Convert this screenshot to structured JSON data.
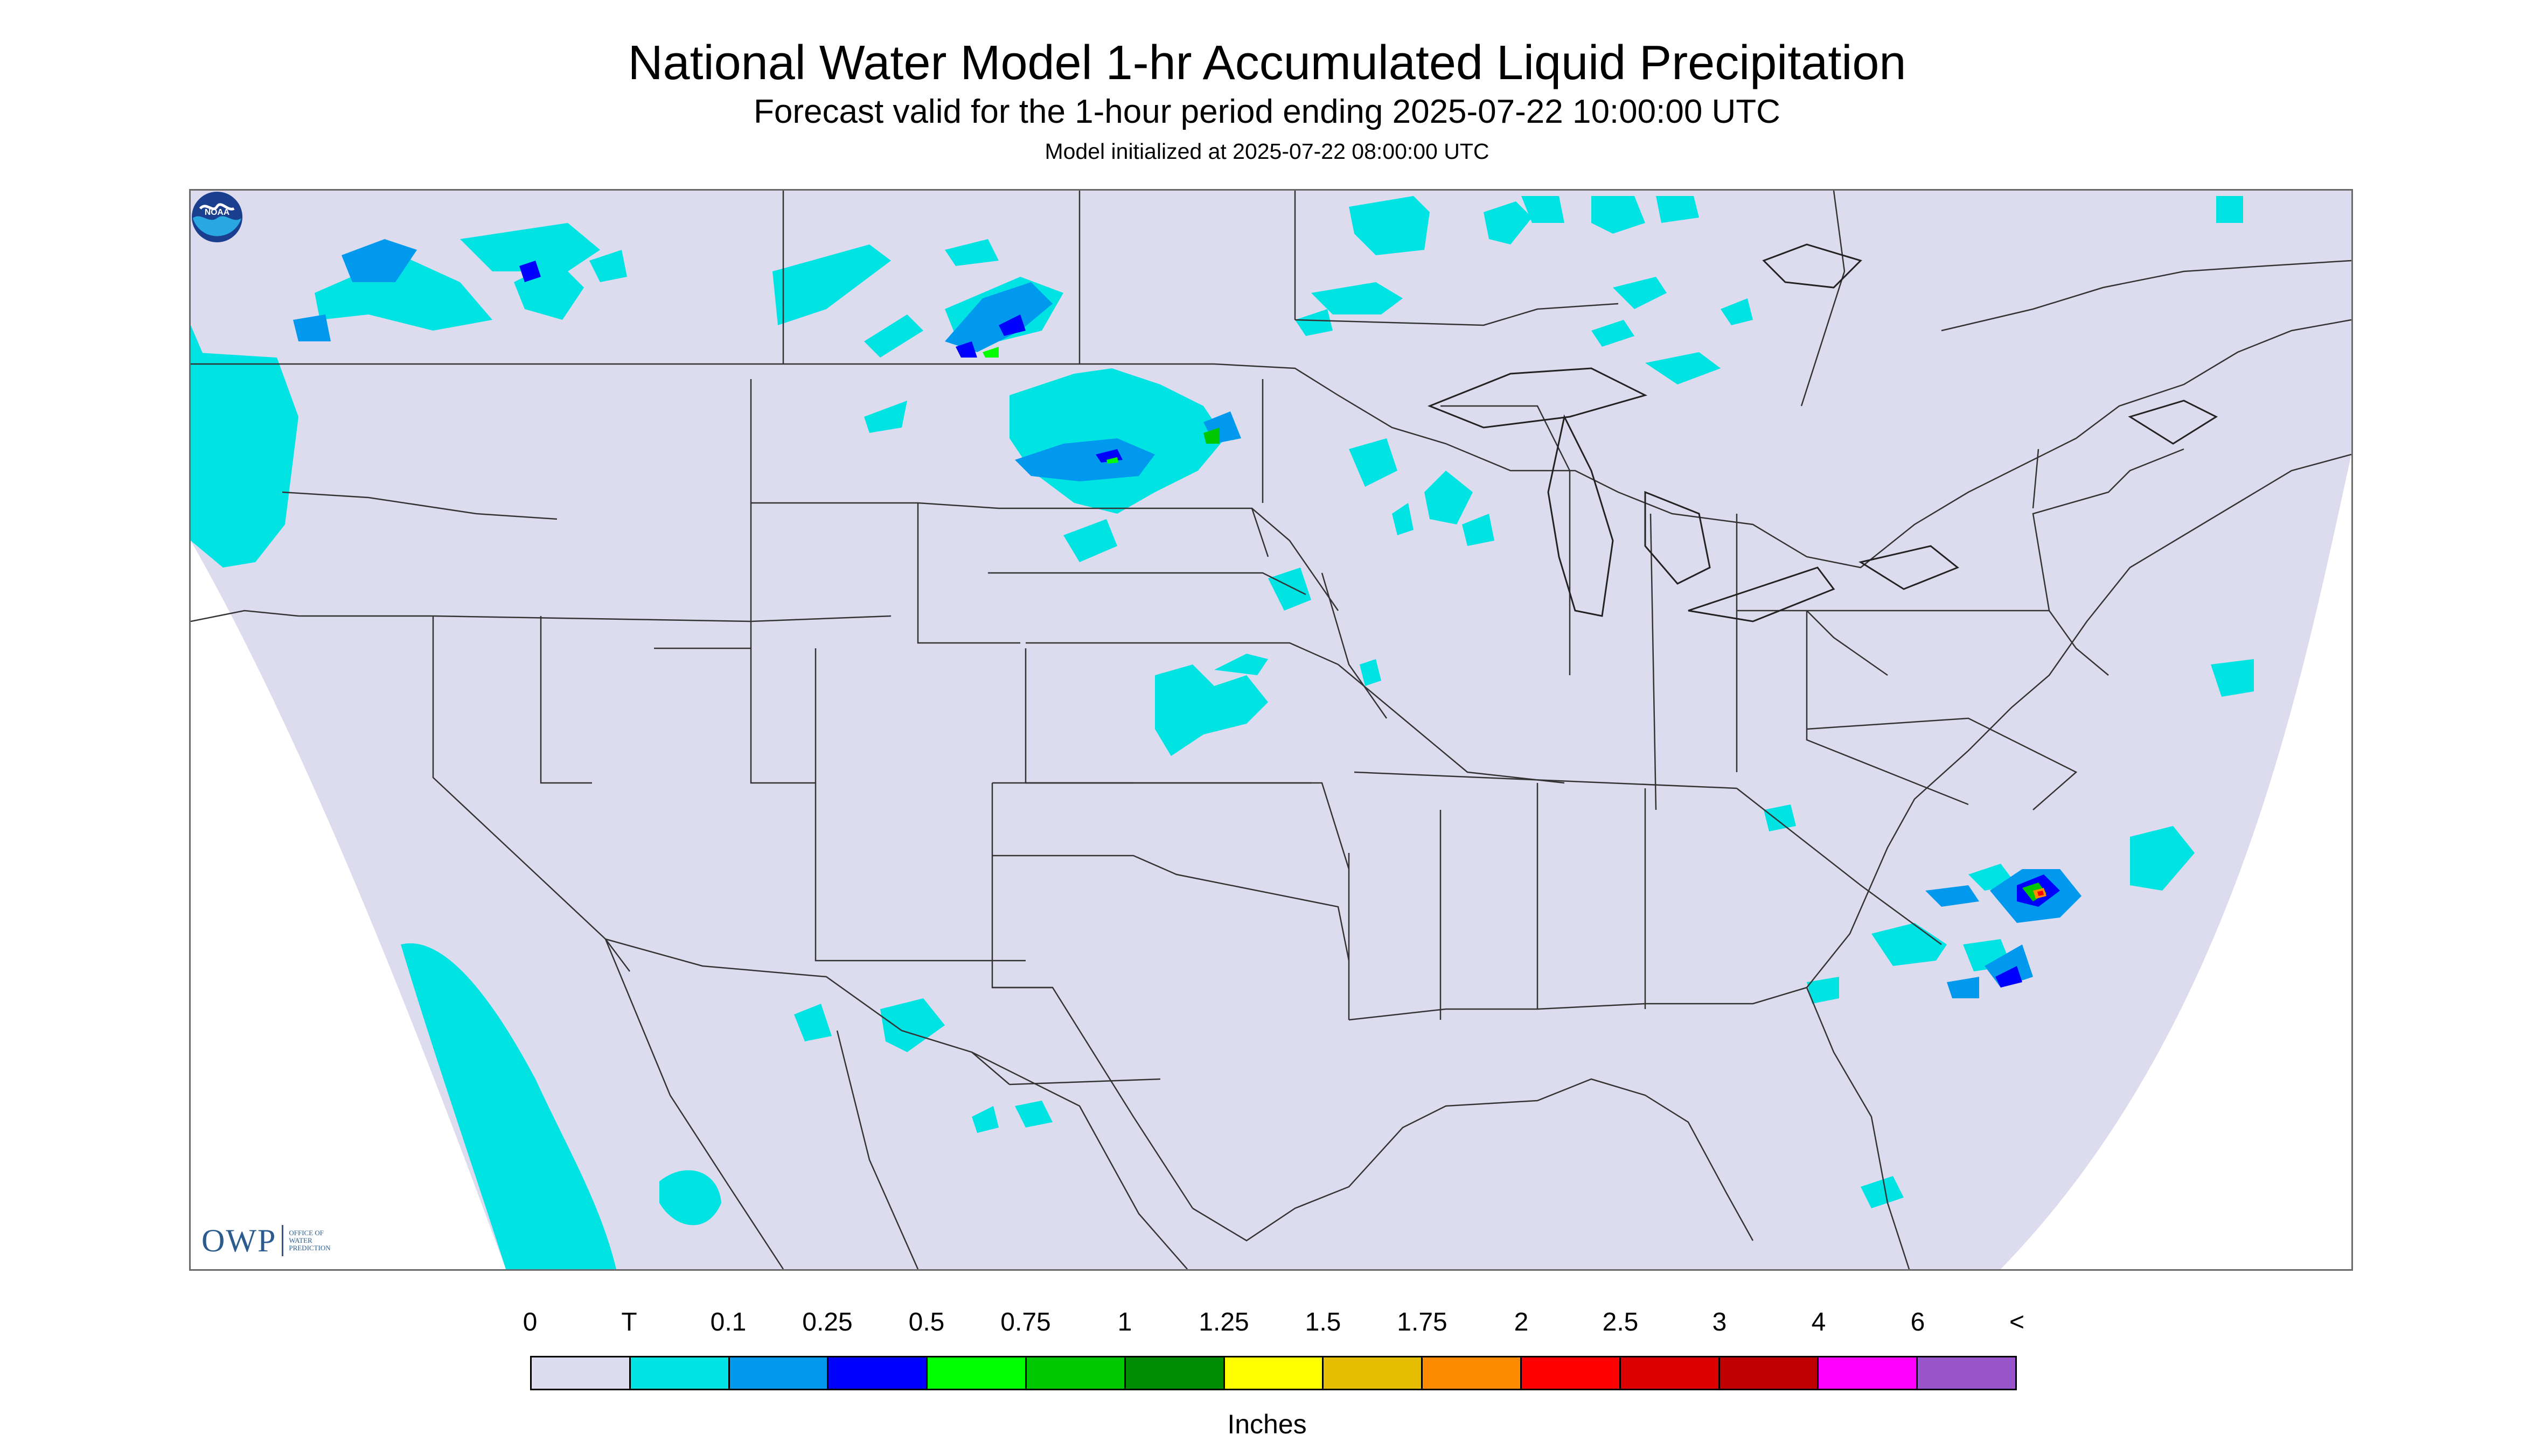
{
  "header": {
    "title": "National Water Model 1-hr Accumulated Liquid Precipitation",
    "subtitle": "Forecast valid for the 1-hour period ending 2025-07-22 10:00:00 UTC",
    "init": "Model initialized at 2025-07-22 08:00:00 UTC"
  },
  "logos": {
    "owp": "OWP",
    "owp_sub": [
      "Office of",
      "Water",
      "Prediction"
    ],
    "noaa": "NOAA"
  },
  "legend": {
    "labels": [
      "0",
      "T",
      "0.1",
      "0.25",
      "0.5",
      "0.75",
      "1",
      "1.25",
      "1.5",
      "1.75",
      "2",
      "2.5",
      "3",
      "4",
      "6",
      "<"
    ],
    "colors": [
      "#dcdcee",
      "#00e3e3",
      "#0099ee",
      "#0000ff",
      "#00ff00",
      "#00c800",
      "#008c00",
      "#ffff00",
      "#e6be00",
      "#ff8c00",
      "#ff0000",
      "#dc0000",
      "#c00000",
      "#ff00ff",
      "#9955cc"
    ],
    "units": "Inches"
  },
  "colors": {
    "background": "#dcdcee",
    "outside_domain": "#ffffff",
    "borders": "#333333"
  }
}
